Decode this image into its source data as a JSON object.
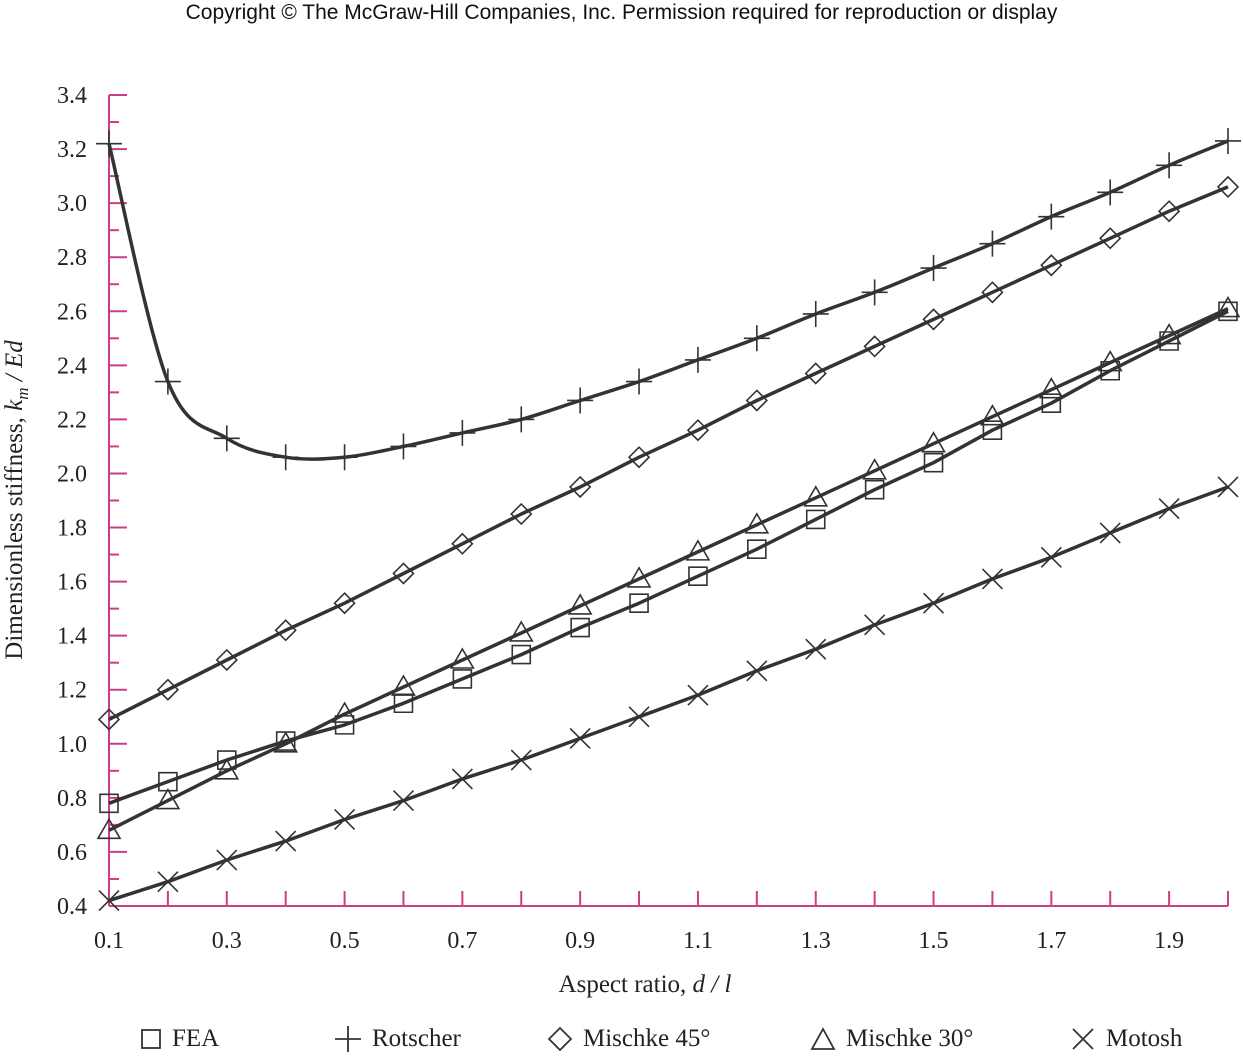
{
  "copyright": "Copyright © The McGraw-Hill Companies, Inc. Permission required for reproduction or display",
  "colors": {
    "axis": "#cc3d85",
    "series": "#333333"
  },
  "chart_data": {
    "type": "line",
    "title": "",
    "xlabel": {
      "prefix": "Aspect ratio, ",
      "italic": "d / l"
    },
    "ylabel": {
      "prefix": "Dimensionless stiffness, ",
      "k": "k",
      "sub": "m",
      "rest": " / Ed"
    },
    "xlim": [
      0.1,
      2.0
    ],
    "ylim": [
      0.4,
      3.4
    ],
    "x_ticks": [
      "0.1",
      "0.3",
      "0.5",
      "0.7",
      "0.9",
      "1.1",
      "1.3",
      "1.5",
      "1.7",
      "1.9"
    ],
    "y_ticks": [
      "0.4",
      "0.6",
      "0.8",
      "1.0",
      "1.2",
      "1.4",
      "1.6",
      "1.8",
      "2.0",
      "2.2",
      "2.4",
      "2.6",
      "2.8",
      "3.0",
      "3.2",
      "3.4"
    ],
    "grid": false,
    "legend_position": "bottom",
    "x": [
      0.1,
      0.2,
      0.3,
      0.4,
      0.5,
      0.6,
      0.7,
      0.8,
      0.9,
      1.0,
      1.1,
      1.2,
      1.3,
      1.4,
      1.5,
      1.6,
      1.7,
      1.8,
      1.9,
      2.0
    ],
    "series": [
      {
        "name": "FEA",
        "marker": "square",
        "values": [
          0.78,
          0.86,
          0.94,
          1.01,
          1.07,
          1.15,
          1.24,
          1.33,
          1.43,
          1.52,
          1.62,
          1.72,
          1.83,
          1.94,
          2.04,
          2.16,
          2.26,
          2.38,
          2.49,
          2.6
        ]
      },
      {
        "name": "Rotscher",
        "marker": "plus",
        "values": [
          3.22,
          2.34,
          2.13,
          2.06,
          2.06,
          2.1,
          2.15,
          2.2,
          2.27,
          2.34,
          2.42,
          2.5,
          2.59,
          2.67,
          2.76,
          2.85,
          2.95,
          3.04,
          3.14,
          3.23
        ]
      },
      {
        "name": "Mischke 45°",
        "marker": "diamond",
        "values": [
          1.09,
          1.2,
          1.31,
          1.42,
          1.52,
          1.63,
          1.74,
          1.85,
          1.95,
          2.06,
          2.16,
          2.27,
          2.37,
          2.47,
          2.57,
          2.67,
          2.77,
          2.87,
          2.97,
          3.06
        ]
      },
      {
        "name": "Mischke 30°",
        "marker": "triangle",
        "values": [
          0.68,
          0.79,
          0.9,
          1.0,
          1.11,
          1.21,
          1.31,
          1.41,
          1.51,
          1.61,
          1.71,
          1.81,
          1.91,
          2.01,
          2.11,
          2.21,
          2.31,
          2.41,
          2.51,
          2.61
        ]
      },
      {
        "name": "Motosh",
        "marker": "cross",
        "values": [
          0.42,
          0.49,
          0.57,
          0.64,
          0.72,
          0.79,
          0.87,
          0.94,
          1.02,
          1.1,
          1.18,
          1.27,
          1.35,
          1.44,
          1.52,
          1.61,
          1.69,
          1.78,
          1.87,
          1.95
        ]
      }
    ]
  }
}
